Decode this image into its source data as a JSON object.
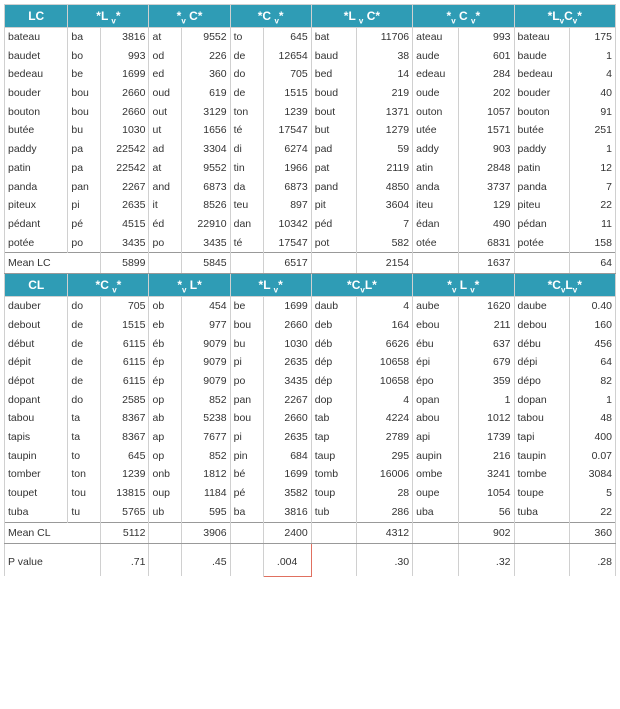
{
  "top": {
    "headers": [
      "LC",
      "*L v*",
      "*v C*",
      "*C v*",
      "*L v C*",
      "*v C v*",
      "*LvCv*"
    ],
    "rows": [
      {
        "w": "bateau",
        "c1s": "ba",
        "c1n": 3816,
        "c2s": "at",
        "c2n": 9552,
        "c3s": "to",
        "c3n": 645,
        "c4s": "bat",
        "c4n": 11706,
        "c5s": "ateau",
        "c5n": 993,
        "c6s": "bateau",
        "c6n": 175
      },
      {
        "w": "baudet",
        "c1s": "bo",
        "c1n": 993,
        "c2s": "od",
        "c2n": 226,
        "c3s": "de",
        "c3n": 12654,
        "c4s": "baud",
        "c4n": 38,
        "c5s": "aude",
        "c5n": 601,
        "c6s": "baude",
        "c6n": 1
      },
      {
        "w": "bedeau",
        "c1s": "be",
        "c1n": 1699,
        "c2s": "ed",
        "c2n": 360,
        "c3s": "do",
        "c3n": 705,
        "c4s": "bed",
        "c4n": 14,
        "c5s": "edeau",
        "c5n": 284,
        "c6s": "bedeau",
        "c6n": 4
      },
      {
        "w": "bouder",
        "c1s": "bou",
        "c1n": 2660,
        "c2s": "oud",
        "c2n": 619,
        "c3s": "de",
        "c3n": 1515,
        "c4s": "boud",
        "c4n": 219,
        "c5s": "oude",
        "c5n": 202,
        "c6s": "bouder",
        "c6n": 40
      },
      {
        "w": "bouton",
        "c1s": "bou",
        "c1n": 2660,
        "c2s": "out",
        "c2n": 3129,
        "c3s": "ton",
        "c3n": 1239,
        "c4s": "bout",
        "c4n": 1371,
        "c5s": "outon",
        "c5n": 1057,
        "c6s": "bouton",
        "c6n": 91
      },
      {
        "w": "butée",
        "c1s": "bu",
        "c1n": 1030,
        "c2s": "ut",
        "c2n": 1656,
        "c3s": "té",
        "c3n": 17547,
        "c4s": "but",
        "c4n": 1279,
        "c5s": "utée",
        "c5n": 1571,
        "c6s": "butée",
        "c6n": 251
      },
      {
        "w": "paddy",
        "c1s": "pa",
        "c1n": 22542,
        "c2s": "ad",
        "c2n": 3304,
        "c3s": "di",
        "c3n": 6274,
        "c4s": "pad",
        "c4n": 59,
        "c5s": "addy",
        "c5n": 903,
        "c6s": "paddy",
        "c6n": 1
      },
      {
        "w": "patin",
        "c1s": "pa",
        "c1n": 22542,
        "c2s": "at",
        "c2n": 9552,
        "c3s": "tin",
        "c3n": 1966,
        "c4s": "pat",
        "c4n": 2119,
        "c5s": "atin",
        "c5n": 2848,
        "c6s": "patin",
        "c6n": 12
      },
      {
        "w": "panda",
        "c1s": "pan",
        "c1n": 2267,
        "c2s": "and",
        "c2n": 6873,
        "c3s": "da",
        "c3n": 6873,
        "c4s": "pand",
        "c4n": 4850,
        "c5s": "anda",
        "c5n": 3737,
        "c6s": "panda",
        "c6n": 7
      },
      {
        "w": "piteux",
        "c1s": "pi",
        "c1n": 2635,
        "c2s": "it",
        "c2n": 8526,
        "c3s": "teu",
        "c3n": 897,
        "c4s": "pit",
        "c4n": 3604,
        "c5s": "iteu",
        "c5n": 129,
        "c6s": "piteu",
        "c6n": 22
      },
      {
        "w": "pédant",
        "c1s": "pé",
        "c1n": 4515,
        "c2s": "éd",
        "c2n": 22910,
        "c3s": "dan",
        "c3n": 10342,
        "c4s": "péd",
        "c4n": 7,
        "c5s": "édan",
        "c5n": 490,
        "c6s": "pédan",
        "c6n": 11
      },
      {
        "w": "potée",
        "c1s": "po",
        "c1n": 3435,
        "c2s": "po",
        "c2n": 3435,
        "c3s": "té",
        "c3n": 17547,
        "c4s": "pot",
        "c4n": 582,
        "c5s": "otée",
        "c5n": 6831,
        "c6s": "potée",
        "c6n": 158
      }
    ],
    "mean": {
      "label": "Mean LC",
      "c1": 5899,
      "c2": 5845,
      "c3": 6517,
      "c4": 2154,
      "c5": 1637,
      "c6": 64
    }
  },
  "bottom": {
    "headers": [
      "CL",
      "*C v*",
      "*v L*",
      "*L v*",
      "*CvL*",
      "*v L v*",
      "*CvLv*"
    ],
    "rows": [
      {
        "w": "dauber",
        "c1s": "do",
        "c1n": 705,
        "c2s": "ob",
        "c2n": 454,
        "c3s": "be",
        "c3n": 1699,
        "c4s": "daub",
        "c4n": 4,
        "c5s": "aube",
        "c5n": 1620,
        "c6s": "daube",
        "c6n": "0.40"
      },
      {
        "w": "debout",
        "c1s": "de",
        "c1n": 1515,
        "c2s": "eb",
        "c2n": 977,
        "c3s": "bou",
        "c3n": 2660,
        "c4s": "deb",
        "c4n": 164,
        "c5s": "ebou",
        "c5n": 211,
        "c6s": "debou",
        "c6n": 160
      },
      {
        "w": "début",
        "c1s": "de",
        "c1n": 6115,
        "c2s": "éb",
        "c2n": 9079,
        "c3s": "bu",
        "c3n": 1030,
        "c4s": "déb",
        "c4n": 6626,
        "c5s": "ébu",
        "c5n": 637,
        "c6s": "débu",
        "c6n": 456
      },
      {
        "w": "dépit",
        "c1s": "de",
        "c1n": 6115,
        "c2s": "ép",
        "c2n": 9079,
        "c3s": "pi",
        "c3n": 2635,
        "c4s": "dép",
        "c4n": 10658,
        "c5s": "épi",
        "c5n": 679,
        "c6s": "dépi",
        "c6n": 64
      },
      {
        "w": "dépot",
        "c1s": "de",
        "c1n": 6115,
        "c2s": "ép",
        "c2n": 9079,
        "c3s": "po",
        "c3n": 3435,
        "c4s": "dép",
        "c4n": 10658,
        "c5s": "épo",
        "c5n": 359,
        "c6s": "dépo",
        "c6n": 82
      },
      {
        "w": "dopant",
        "c1s": "do",
        "c1n": 2585,
        "c2s": "op",
        "c2n": 852,
        "c3s": "pan",
        "c3n": 2267,
        "c4s": "dop",
        "c4n": 4,
        "c5s": "opan",
        "c5n": 1,
        "c6s": "dopan",
        "c6n": 1
      },
      {
        "w": "tabou",
        "c1s": "ta",
        "c1n": 8367,
        "c2s": "ab",
        "c2n": 5238,
        "c3s": "bou",
        "c3n": 2660,
        "c4s": "tab",
        "c4n": 4224,
        "c5s": "abou",
        "c5n": 1012,
        "c6s": "tabou",
        "c6n": 48
      },
      {
        "w": "tapis",
        "c1s": "ta",
        "c1n": 8367,
        "c2s": "ap",
        "c2n": 7677,
        "c3s": "pi",
        "c3n": 2635,
        "c4s": "tap",
        "c4n": 2789,
        "c5s": "api",
        "c5n": 1739,
        "c6s": "tapi",
        "c6n": 400
      },
      {
        "w": "taupin",
        "c1s": "to",
        "c1n": 645,
        "c2s": "op",
        "c2n": 852,
        "c3s": "pin",
        "c3n": 684,
        "c4s": "taup",
        "c4n": 295,
        "c5s": "aupin",
        "c5n": 216,
        "c6s": "taupin",
        "c6n": "0.07"
      },
      {
        "w": "tomber",
        "c1s": "ton",
        "c1n": 1239,
        "c2s": "onb",
        "c2n": 1812,
        "c3s": "bé",
        "c3n": 1699,
        "c4s": "tomb",
        "c4n": 16006,
        "c5s": "ombe",
        "c5n": 3241,
        "c6s": "tombe",
        "c6n": 3084
      },
      {
        "w": "toupet",
        "c1s": "tou",
        "c1n": 13815,
        "c2s": "oup",
        "c2n": 1184,
        "c3s": "pé",
        "c3n": 3582,
        "c4s": "toup",
        "c4n": 28,
        "c5s": "oupe",
        "c5n": 1054,
        "c6s": "toupe",
        "c6n": 5
      },
      {
        "w": "tuba",
        "c1s": "tu",
        "c1n": 5765,
        "c2s": "ub",
        "c2n": 595,
        "c3s": "ba",
        "c3n": 3816,
        "c4s": "tub",
        "c4n": 286,
        "c5s": "uba",
        "c5n": 56,
        "c6s": "tuba",
        "c6n": 22
      }
    ],
    "mean": {
      "label": "Mean CL",
      "c1": 5112,
      "c2": 3906,
      "c3": 2400,
      "c4": 4312,
      "c5": 902,
      "c6": 360
    },
    "pval": {
      "label": "P value",
      "c1": ".71",
      "c2": ".45",
      "c3": ".004",
      "c4": ".30",
      "c5": ".32",
      "c6": ".28"
    }
  }
}
